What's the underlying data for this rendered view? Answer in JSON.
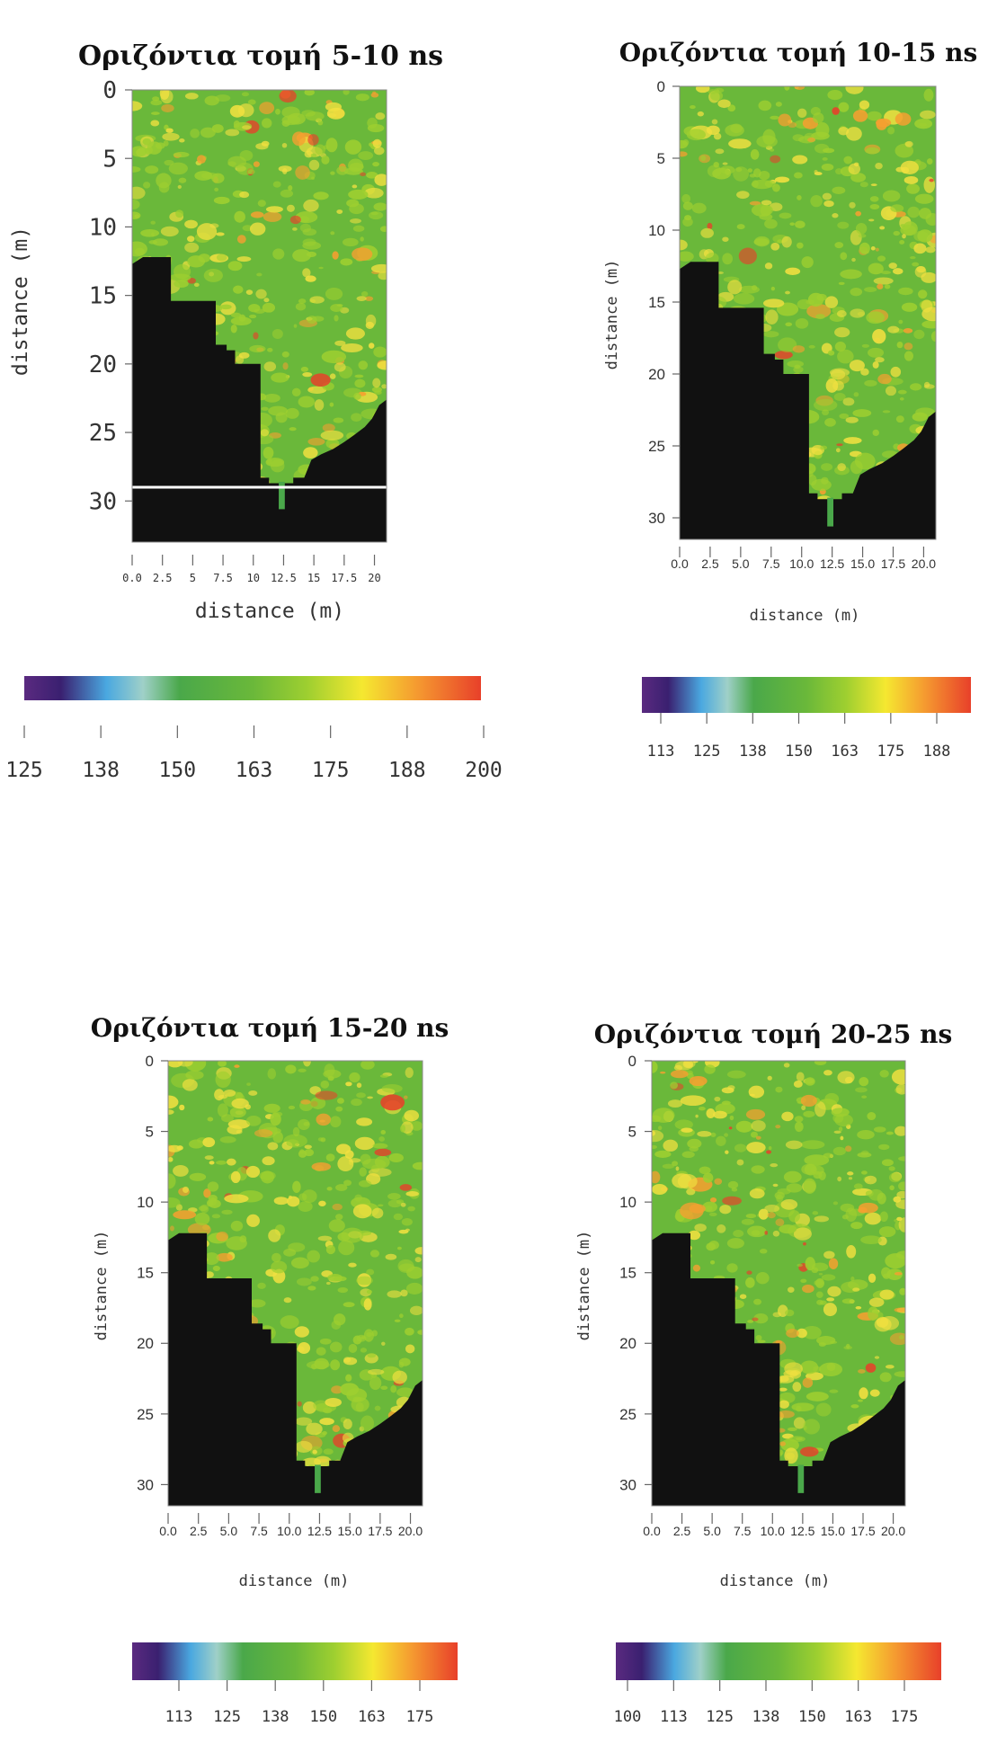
{
  "chart_data": [
    {
      "type": "heatmap",
      "title": "Οριζόντια τομή 5-10 ns",
      "xlabel": "distance (m)",
      "ylabel": "distance (m)",
      "x_ticks": [
        "0.0",
        "2.5",
        "5",
        "7.5",
        "10",
        "12.5",
        "15",
        "17.5",
        "20"
      ],
      "y_ticks": [
        "0",
        "5",
        "10",
        "15",
        "20",
        "25",
        "30"
      ],
      "colorbar_ticks": [
        "125",
        "138",
        "150",
        "163",
        "175",
        "188",
        "200"
      ],
      "colorbar_range": [
        125,
        200
      ],
      "xlim": [
        0,
        21
      ],
      "ylim": [
        0,
        33
      ],
      "marker_line_y": 29
    },
    {
      "type": "heatmap",
      "title": "Οριζόντια τομή 10-15 ns",
      "xlabel": "distance (m)",
      "ylabel": "distance (m)",
      "x_ticks": [
        "0.0",
        "2.5",
        "5.0",
        "7.5",
        "10.0",
        "12.5",
        "15.0",
        "17.5",
        "20.0"
      ],
      "y_ticks": [
        "0",
        "5",
        "10",
        "15",
        "20",
        "25",
        "30"
      ],
      "colorbar_ticks": [
        "113",
        "125",
        "138",
        "150",
        "163",
        "175",
        "188"
      ],
      "colorbar_range": [
        100,
        200
      ],
      "xlim": [
        0,
        21
      ],
      "ylim": [
        0,
        31.5
      ]
    },
    {
      "type": "heatmap",
      "title": "Οριζόντια τομή 15-20 ns",
      "xlabel": "distance (m)",
      "ylabel": "distance (m)",
      "x_ticks": [
        "0.0",
        "2.5",
        "5.0",
        "7.5",
        "10.0",
        "12.5",
        "15.0",
        "17.5",
        "20.0"
      ],
      "y_ticks": [
        "0",
        "5",
        "10",
        "15",
        "20",
        "25",
        "30"
      ],
      "colorbar_ticks": [
        "113",
        "125",
        "138",
        "150",
        "163",
        "175"
      ],
      "colorbar_range": [
        100,
        188
      ],
      "xlim": [
        0,
        21
      ],
      "ylim": [
        0,
        31.5
      ]
    },
    {
      "type": "heatmap",
      "title": "Οριζόντια τομή 20-25 ns",
      "xlabel": "distance (m)",
      "ylabel": "distance (m)",
      "x_ticks": [
        "0.0",
        "2.5",
        "5.0",
        "7.5",
        "10.0",
        "12.5",
        "15.0",
        "17.5",
        "20.0"
      ],
      "y_ticks": [
        "0",
        "5",
        "10",
        "15",
        "20",
        "25",
        "30"
      ],
      "colorbar_ticks": [
        "100",
        "113",
        "125",
        "138",
        "150",
        "163",
        "175"
      ],
      "colorbar_range": [
        95,
        188
      ],
      "xlim": [
        0,
        21
      ],
      "ylim": [
        0,
        31.5
      ]
    }
  ],
  "colormap": [
    "#5a2a80",
    "#3a2070",
    "#4aa8e0",
    "#9fd0c8",
    "#4aa84a",
    "#6ab83a",
    "#9ecf30",
    "#f5e830",
    "#f59a30",
    "#e8402a"
  ],
  "mask_color": "#111111"
}
